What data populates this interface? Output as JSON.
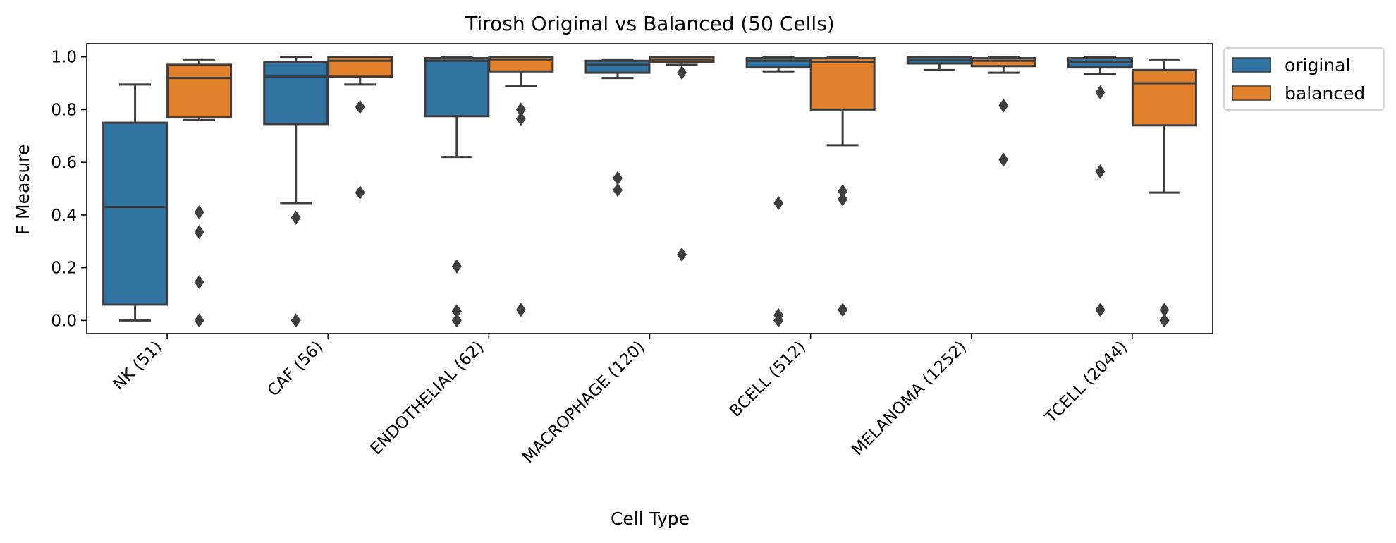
{
  "chart_data": {
    "type": "box",
    "title": "Tirosh Original vs Balanced (50 Cells)",
    "xlabel": "Cell Type",
    "ylabel": "F Measure",
    "ylim": [
      -0.05,
      1.05
    ],
    "yticks": [
      0.0,
      0.2,
      0.4,
      0.6,
      0.8,
      1.0
    ],
    "ytick_labels": [
      "0.0",
      "0.2",
      "0.4",
      "0.6",
      "0.8",
      "1.0"
    ],
    "grid": false,
    "legend_placement": "outside-top-right",
    "categories": [
      {
        "label": "NK (51)",
        "highlight": true
      },
      {
        "label": "CAF (56)",
        "highlight": true
      },
      {
        "label": "ENDOTHELIAL (62)",
        "highlight": false
      },
      {
        "label": "MACROPHAGE (120)",
        "highlight": true
      },
      {
        "label": "BCELL (512)",
        "highlight": false
      },
      {
        "label": "MELANOMA (1252)",
        "highlight": false
      },
      {
        "label": "TCELL (2044)",
        "highlight": false
      }
    ],
    "series": [
      {
        "name": "original",
        "color": "#3274a1",
        "boxes": [
          {
            "q1": 0.06,
            "median": 0.43,
            "q3": 0.75,
            "whislo": 0.0,
            "whishi": 0.895,
            "fliers": []
          },
          {
            "q1": 0.745,
            "median": 0.925,
            "q3": 0.98,
            "whislo": 0.445,
            "whishi": 1.0,
            "fliers": [
              0.39,
              0.0
            ]
          },
          {
            "q1": 0.775,
            "median": 0.985,
            "q3": 0.995,
            "whislo": 0.62,
            "whishi": 1.0,
            "fliers": [
              0.205,
              0.035,
              0.0
            ]
          },
          {
            "q1": 0.94,
            "median": 0.97,
            "q3": 0.985,
            "whislo": 0.92,
            "whishi": 0.99,
            "fliers": [
              0.54,
              0.495
            ]
          },
          {
            "q1": 0.96,
            "median": 0.985,
            "q3": 0.995,
            "whislo": 0.945,
            "whishi": 1.0,
            "fliers": [
              0.445,
              0.02,
              0.0
            ]
          },
          {
            "q1": 0.975,
            "median": 0.99,
            "q3": 1.0,
            "whislo": 0.95,
            "whishi": 1.0,
            "fliers": []
          },
          {
            "q1": 0.96,
            "median": 0.98,
            "q3": 0.995,
            "whislo": 0.935,
            "whishi": 1.0,
            "fliers": [
              0.865,
              0.565,
              0.04
            ]
          }
        ]
      },
      {
        "name": "balanced",
        "color": "#e1812c",
        "boxes": [
          {
            "q1": 0.77,
            "median": 0.92,
            "q3": 0.97,
            "whislo": 0.76,
            "whishi": 0.99,
            "fliers": [
              0.41,
              0.335,
              0.145,
              0.0
            ]
          },
          {
            "q1": 0.925,
            "median": 0.985,
            "q3": 1.0,
            "whislo": 0.895,
            "whishi": 1.0,
            "fliers": [
              0.81,
              0.485
            ]
          },
          {
            "q1": 0.945,
            "median": 0.99,
            "q3": 1.0,
            "whislo": 0.89,
            "whishi": 1.0,
            "fliers": [
              0.8,
              0.765,
              0.04
            ]
          },
          {
            "q1": 0.98,
            "median": 0.99,
            "q3": 1.0,
            "whislo": 0.97,
            "whishi": 1.0,
            "fliers": [
              0.94,
              0.25
            ]
          },
          {
            "q1": 0.8,
            "median": 0.98,
            "q3": 0.995,
            "whislo": 0.665,
            "whishi": 1.0,
            "fliers": [
              0.49,
              0.46,
              0.04
            ]
          },
          {
            "q1": 0.965,
            "median": 0.985,
            "q3": 0.995,
            "whislo": 0.94,
            "whishi": 1.0,
            "fliers": [
              0.815,
              0.61
            ]
          },
          {
            "q1": 0.74,
            "median": 0.9,
            "q3": 0.95,
            "whislo": 0.485,
            "whishi": 0.99,
            "fliers": [
              0.04,
              0.0
            ]
          }
        ]
      }
    ],
    "colors": {
      "highlight_label": "#a52a2a",
      "normal_label": "#000000",
      "outline": "#3d3d3d",
      "flier": "#3d3d3d"
    }
  }
}
